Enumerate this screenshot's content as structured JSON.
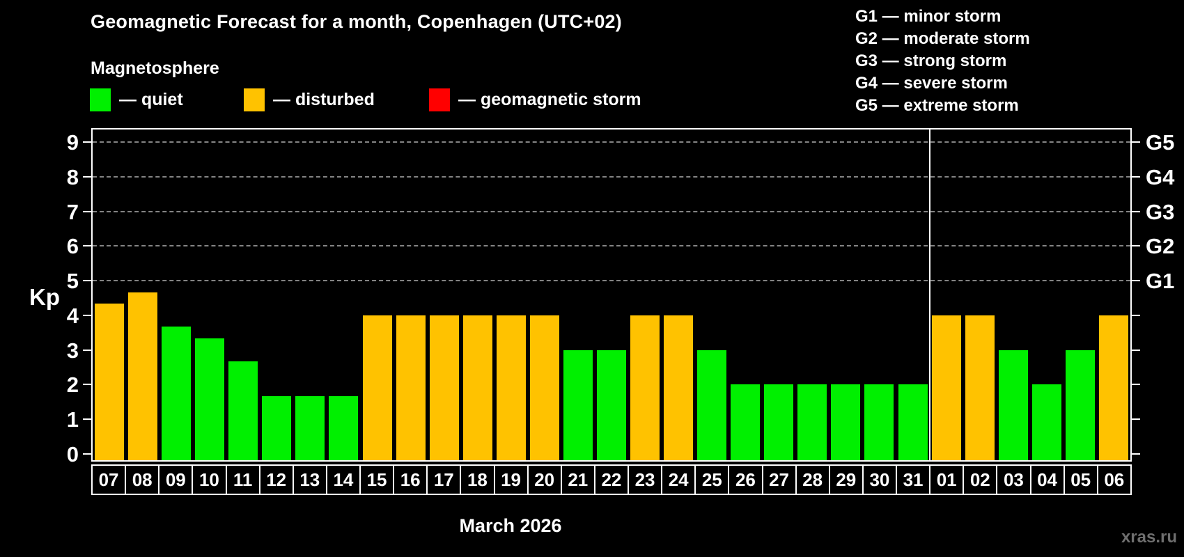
{
  "title": "Geomagnetic Forecast for a month, Copenhagen (UTC+02)",
  "subtitle": "Magnetosphere",
  "colors": {
    "quiet": "#00f000",
    "disturbed": "#ffc200",
    "storm": "#ff0000",
    "axis": "#ffffff",
    "grid": "#9c9c9c",
    "background": "#000000",
    "watermark": "#6f6f6f"
  },
  "legend": [
    {
      "key": "quiet",
      "label": "— quiet",
      "color": "#00f000"
    },
    {
      "key": "disturbed",
      "label": "— disturbed",
      "color": "#ffc200"
    },
    {
      "key": "storm",
      "label": "— geomagnetic storm",
      "color": "#ff0000"
    }
  ],
  "g_scale_legend": [
    "G1 — minor storm",
    "G2 — moderate storm",
    "G3 — strong storm",
    "G4 — severe storm",
    "G5 — extreme storm"
  ],
  "axis": {
    "ylabel": "Kp",
    "yticks": [
      0,
      1,
      2,
      3,
      4,
      5,
      6,
      7,
      8,
      9
    ],
    "grid_levels": [
      5,
      6,
      7,
      8,
      9
    ],
    "right_labels": [
      {
        "kp": 5,
        "label": "G1"
      },
      {
        "kp": 6,
        "label": "G2"
      },
      {
        "kp": 7,
        "label": "G3"
      },
      {
        "kp": 8,
        "label": "G4"
      },
      {
        "kp": 9,
        "label": "G5"
      }
    ]
  },
  "xlabel": "March 2026",
  "watermark": "xras.ru",
  "chart_data": {
    "type": "bar",
    "title": "Geomagnetic Forecast for a month, Copenhagen (UTC+02)",
    "xlabel": "March 2026",
    "ylabel": "Kp",
    "ylim": [
      0,
      9.4
    ],
    "grid": "dashed horizontal at Kp 5-9 only",
    "legend_position": "top-left",
    "categories": [
      "07",
      "08",
      "09",
      "10",
      "11",
      "12",
      "13",
      "14",
      "15",
      "16",
      "17",
      "18",
      "19",
      "20",
      "21",
      "22",
      "23",
      "24",
      "25",
      "26",
      "27",
      "28",
      "29",
      "30",
      "31",
      "01",
      "02",
      "03",
      "04",
      "05",
      "06"
    ],
    "values": [
      4.333,
      4.667,
      3.667,
      3.333,
      2.667,
      1.667,
      1.667,
      1.667,
      4,
      4,
      4,
      4,
      4,
      4,
      3,
      3,
      4,
      4,
      3,
      2,
      2,
      2,
      2,
      2,
      2,
      4,
      4,
      3,
      2,
      3,
      4
    ],
    "statuses": [
      "disturbed",
      "disturbed",
      "quiet",
      "quiet",
      "quiet",
      "quiet",
      "quiet",
      "quiet",
      "disturbed",
      "disturbed",
      "disturbed",
      "disturbed",
      "disturbed",
      "disturbed",
      "quiet",
      "quiet",
      "disturbed",
      "disturbed",
      "quiet",
      "quiet",
      "quiet",
      "quiet",
      "quiet",
      "quiet",
      "quiet",
      "disturbed",
      "disturbed",
      "quiet",
      "quiet",
      "quiet",
      "disturbed"
    ],
    "month_separator_after_index": 24
  }
}
